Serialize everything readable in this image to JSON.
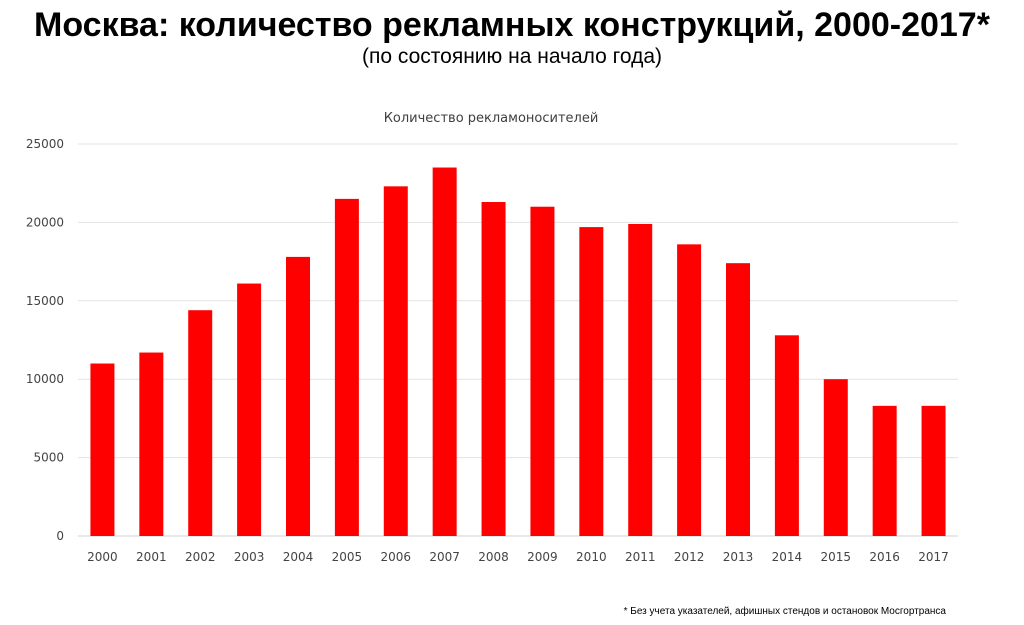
{
  "title": "Москва: количество рекламных конструкций, 2000-2017*",
  "subtitle": "(по состоянию на начало года)",
  "footnote": "* Без учета указателей, афишных стендов и остановок Мосгортранса",
  "colors": {
    "bar": "#ff0000",
    "grid": "#e3e3e3",
    "axis": "#d0d0d0",
    "tick_text": "#444444",
    "chart_title": "#404040"
  },
  "chart_data": {
    "type": "bar",
    "title": "Количество рекламоносителей",
    "xlabel": "",
    "ylabel": "",
    "categories": [
      "2000",
      "2001",
      "2002",
      "2003",
      "2004",
      "2005",
      "2006",
      "2007",
      "2008",
      "2009",
      "2010",
      "2011",
      "2012",
      "2013",
      "2014",
      "2015",
      "2016",
      "2017"
    ],
    "values": [
      11000,
      11700,
      14400,
      16100,
      17800,
      21500,
      22300,
      23500,
      21300,
      21000,
      19700,
      19900,
      18600,
      17400,
      12800,
      10000,
      8300,
      8300
    ],
    "ylim": [
      0,
      25000
    ],
    "yticks": [
      0,
      5000,
      10000,
      15000,
      20000,
      25000
    ],
    "grid": true,
    "legend": "none"
  }
}
